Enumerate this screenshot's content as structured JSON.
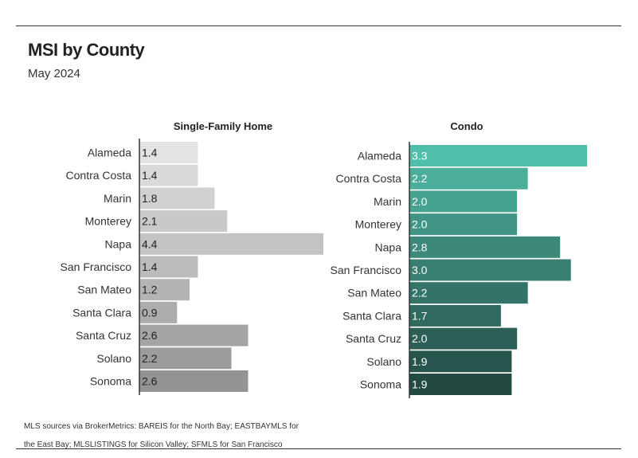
{
  "title": "MSI by County",
  "subtitle": "May 2024",
  "footnote": "MLS sources via BrokerMetrics: BAREIS for the North Bay; EASTBAYMLS for the East Bay; MLSLISTINGS for Silicon Valley; SFMLS for San Francisco",
  "colors": {
    "single_family": [
      "#e3e3e3",
      "#dadada",
      "#d1d1d1",
      "#c9c9c9",
      "#c3c3c3",
      "#bcbcbc",
      "#b4b4b4",
      "#acacac",
      "#a4a4a4",
      "#9c9c9c",
      "#949494"
    ],
    "condo": [
      "#50bfa9",
      "#4aae9a",
      "#45a28f",
      "#409484",
      "#3c8879",
      "#387f71",
      "#347468",
      "#30695e",
      "#2c5f56",
      "#27544c",
      "#234a42"
    ]
  },
  "chart_data": [
    {
      "type": "bar",
      "orientation": "horizontal",
      "title": "Single-Family Home",
      "categories": [
        "Alameda",
        "Contra Costa",
        "Marin",
        "Monterey",
        "Napa",
        "San Francisco",
        "San Mateo",
        "Santa Clara",
        "Santa Cruz",
        "Solano",
        "Sonoma"
      ],
      "values": [
        1.4,
        1.4,
        1.8,
        2.1,
        4.4,
        1.4,
        1.2,
        0.9,
        2.6,
        2.2,
        2.6
      ],
      "labels": [
        "1.4",
        "1.4",
        "1.8",
        "2.1",
        "4.4",
        "1.4",
        "1.2",
        "0.9",
        "2.6",
        "2.2",
        "2.6"
      ],
      "xlim": [
        0,
        4.4
      ],
      "grid": false
    },
    {
      "type": "bar",
      "orientation": "horizontal",
      "title": "Condo",
      "categories": [
        "Alameda",
        "Contra Costa",
        "Marin",
        "Monterey",
        "Napa",
        "San Francisco",
        "San Mateo",
        "Santa Clara",
        "Santa Cruz",
        "Solano",
        "Sonoma"
      ],
      "values": [
        3.3,
        2.2,
        2.0,
        2.0,
        2.8,
        3.0,
        2.2,
        1.7,
        2.0,
        1.9,
        1.9
      ],
      "labels": [
        "3.3",
        "2.2",
        "2.0",
        "2.0",
        "2.8",
        "3.0",
        "2.2",
        "1.7",
        "2.0",
        "1.9",
        "1.9"
      ],
      "xlim": [
        0,
        3.3
      ],
      "grid": false
    }
  ]
}
